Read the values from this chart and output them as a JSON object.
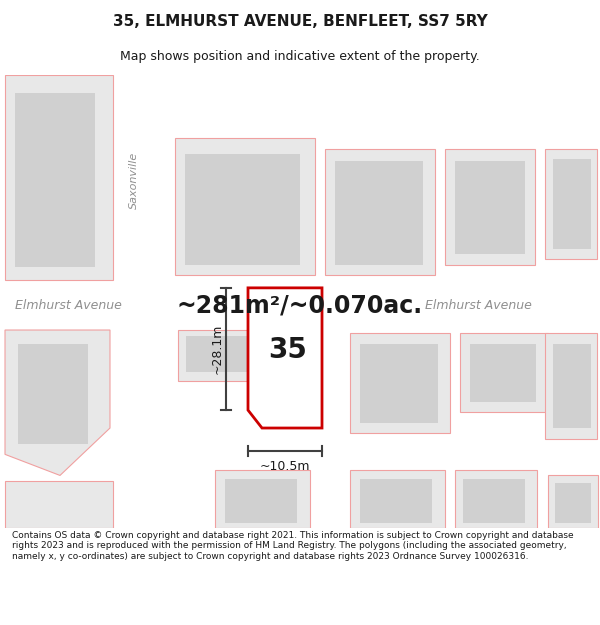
{
  "title": "35, ELMHURST AVENUE, BENFLEET, SS7 5RY",
  "subtitle": "Map shows position and indicative extent of the property.",
  "area_label": "~281m²/~0.070ac.",
  "dimension_width": "~10.5m",
  "dimension_height": "~28.1m",
  "property_number": "35",
  "street_name_left": "Elmhurst Avenue",
  "street_name_right": "Elmhurst Avenue",
  "street_vertical": "Saxonville",
  "footer_text": "Contains OS data © Crown copyright and database right 2021. This information is subject to Crown copyright and database rights 2023 and is reproduced with the permission of HM Land Registry. The polygons (including the associated geometry, namely x, y co-ordinates) are subject to Crown copyright and database rights 2023 Ordnance Survey 100026316.",
  "bg_color": "#f0f0f0",
  "road_color": "#ffffff",
  "plot_outline_color": "#cc0000",
  "building_fill": "#e0e0e0",
  "building_stroke": "#f08080",
  "dim_line_color": "#404040",
  "street_label_color": "#909090",
  "area_label_color": "#1a1a1a"
}
